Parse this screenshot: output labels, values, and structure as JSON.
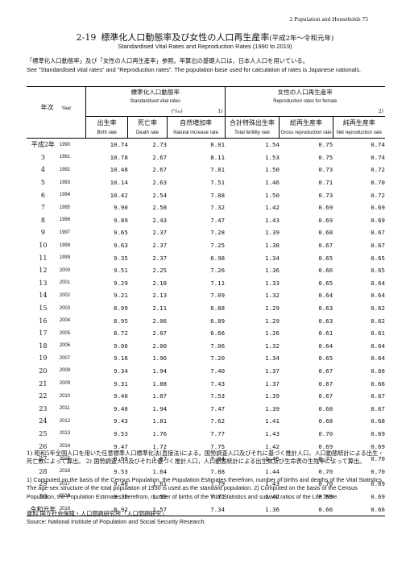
{
  "header": {
    "running_title": "2  Population and Households   75"
  },
  "title": {
    "number": "2-19",
    "jp": "標準化人口動態率及び女性の人口再生産率",
    "jp_period": "(平成2年～令和元年)",
    "en": "Standardised Vital Rates and Reproduction Rates (1990 to 2019)"
  },
  "notes": {
    "jp": "「標準化人口動態率」及び「女性の人口再生産率」参照。率算出の基礎人口は，日本人人口を用いている。",
    "en": "See \"Standardised vital rates\" and \"Reproduction rates\". The population base used for calculation of rates is Japanese nationals."
  },
  "columns": {
    "year_jp": "年次",
    "year_en": "Year",
    "group1_jp": "標準化人口動態率",
    "group1_en": "Standardised vital rates",
    "group1_unit": "(⁰/₀₀)",
    "group1_note": "1)",
    "group2_jp": "女性の人口再生産率",
    "group2_en": "Reproduction rates for female",
    "group2_note": "2)",
    "c1_jp": "出生率",
    "c1_en": "Birth rate",
    "c2_jp": "死亡率",
    "c2_en": "Death rate",
    "c3_jp": "自然増加率",
    "c3_en": "Natural increase rate",
    "c4_jp": "合計特殊出生率",
    "c4_en": "Total fertility rate",
    "c5_jp": "総再生産率",
    "c5_en": "Gross reproduction rate",
    "c6_jp": "純再生産率",
    "c6_en": "Net reproduction rate"
  },
  "rows": [
    {
      "era": "平成2年",
      "year": "1990",
      "v": [
        "10.74",
        "2.73",
        "8.01",
        "1.54",
        "0.75",
        "0.74"
      ]
    },
    {
      "era": "3",
      "year": "1991",
      "v": [
        "10.78",
        "2.67",
        "8.11",
        "1.53",
        "0.75",
        "0.74"
      ]
    },
    {
      "era": "4",
      "year": "1992",
      "v": [
        "10.48",
        "2.67",
        "7.81",
        "1.50",
        "0.73",
        "0.72"
      ]
    },
    {
      "era": "5",
      "year": "1993",
      "v": [
        "10.14",
        "2.63",
        "7.51",
        "1.46",
        "0.71",
        "0.70"
      ]
    },
    {
      "era": "6",
      "year": "1994",
      "v": [
        "10.42",
        "2.54",
        "7.88",
        "1.50",
        "0.73",
        "0.72"
      ]
    },
    {
      "era": "7",
      "year": "1995",
      "v": [
        "9.90",
        "2.58",
        "7.32",
        "1.42",
        "0.69",
        "0.69"
      ]
    },
    {
      "era": "8",
      "year": "1996",
      "v": [
        "9.89",
        "2.43",
        "7.47",
        "1.43",
        "0.69",
        "0.69"
      ]
    },
    {
      "era": "9",
      "year": "1997",
      "v": [
        "9.65",
        "2.37",
        "7.28",
        "1.39",
        "0.68",
        "0.67"
      ]
    },
    {
      "era": "10",
      "year": "1998",
      "v": [
        "9.63",
        "2.37",
        "7.25",
        "1.38",
        "0.67",
        "0.67"
      ]
    },
    {
      "era": "11",
      "year": "1999",
      "v": [
        "9.35",
        "2.37",
        "6.98",
        "1.34",
        "0.65",
        "0.65"
      ]
    },
    {
      "era": "12",
      "year": "2000",
      "v": [
        "9.51",
        "2.25",
        "7.26",
        "1.36",
        "0.66",
        "0.65"
      ]
    },
    {
      "era": "13",
      "year": "2001",
      "v": [
        "9.29",
        "2.18",
        "7.11",
        "1.33",
        "0.65",
        "0.64"
      ]
    },
    {
      "era": "14",
      "year": "2002",
      "v": [
        "9.21",
        "2.13",
        "7.09",
        "1.32",
        "0.64",
        "0.64"
      ]
    },
    {
      "era": "15",
      "year": "2003",
      "v": [
        "8.99",
        "2.11",
        "6.88",
        "1.29",
        "0.63",
        "0.62"
      ]
    },
    {
      "era": "16",
      "year": "2004",
      "v": [
        "8.95",
        "2.06",
        "6.89",
        "1.29",
        "0.63",
        "0.62"
      ]
    },
    {
      "era": "17",
      "year": "2005",
      "v": [
        "8.72",
        "2.07",
        "6.66",
        "1.26",
        "0.61",
        "0.61"
      ]
    },
    {
      "era": "18",
      "year": "2006",
      "v": [
        "9.06",
        "2.00",
        "7.06",
        "1.32",
        "0.64",
        "0.64"
      ]
    },
    {
      "era": "19",
      "year": "2007",
      "v": [
        "9.16",
        "1.96",
        "7.20",
        "1.34",
        "0.65",
        "0.64"
      ]
    },
    {
      "era": "20",
      "year": "2008",
      "v": [
        "9.34",
        "1.94",
        "7.40",
        "1.37",
        "0.67",
        "0.66"
      ]
    },
    {
      "era": "21",
      "year": "2009",
      "v": [
        "9.31",
        "1.88",
        "7.43",
        "1.37",
        "0.67",
        "0.66"
      ]
    },
    {
      "era": "22",
      "year": "2010",
      "v": [
        "9.40",
        "1.87",
        "7.53",
        "1.39",
        "0.67",
        "0.67"
      ]
    },
    {
      "era": "23",
      "year": "2011",
      "v": [
        "9.40",
        "1.94",
        "7.47",
        "1.39",
        "0.68",
        "0.67"
      ]
    },
    {
      "era": "24",
      "year": "2012",
      "v": [
        "9.43",
        "1.81",
        "7.62",
        "1.41",
        "0.68",
        "0.68"
      ]
    },
    {
      "era": "25",
      "year": "2013",
      "v": [
        "9.53",
        "1.76",
        "7.77",
        "1.43",
        "0.70",
        "0.69"
      ]
    },
    {
      "era": "26",
      "year": "2014",
      "v": [
        "9.47",
        "1.72",
        "7.75",
        "1.42",
        "0.69",
        "0.69"
      ]
    },
    {
      "era": "27",
      "year": "2015",
      "v": [
        "9.62",
        "1.67",
        "7.94",
        "1.45",
        "0.71",
        "0.70"
      ]
    },
    {
      "era": "28",
      "year": "2016",
      "v": [
        "9.53",
        "1.64",
        "7.88",
        "1.44",
        "0.70",
        "0.70"
      ]
    },
    {
      "era": "29",
      "year": "2017",
      "v": [
        "9.40",
        "1.61",
        "7.79",
        "1.43",
        "0.70",
        "0.69"
      ]
    },
    {
      "era": "30",
      "year": "2018",
      "v": [
        "9.30",
        "1.59",
        "7.71",
        "1.42",
        "0.69",
        "0.69"
      ]
    },
    {
      "era": "令和元年",
      "year": "2019",
      "v": [
        "8.92",
        "1.57",
        "7.34",
        "1.36",
        "0.66",
        "0.66"
      ]
    }
  ],
  "footnotes": {
    "jp1": "1)  昭和5年全国人口を用いた任意標準人口標準化法(直接法)による。国勢調査人口及びそれに基づく推計人口，人口動態統計による出生・死亡数によって算出。 2)  国勢調査人口及びそれに基づく推計人口，人口動態統計による出生数及び生命表の生残率によって算出。",
    "en1": "1)  Computed on the basis of the Census Population, the Population Estimates therefrom, number of births and deaths of the Vital Statistics. The age-sex structure of the total population of 1930 is used as the standard population.  2)  Computed on the basis of the Census Population, the Population Estimates therefrom, number of births of the Vital Statistics and survival ratios of the Life Table.",
    "source_jp": "資料  国立社会保障・人口問題研究所「人口問題研究」",
    "source_en": "Source:  National Institute of Population and Social Security Research."
  }
}
